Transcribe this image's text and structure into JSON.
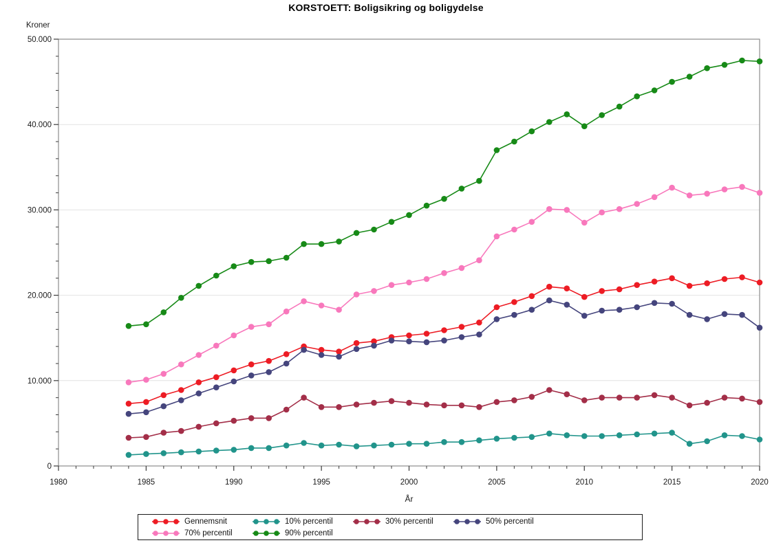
{
  "title": "KORSTOETT: Boligsikring og boligydelse",
  "y_axis": {
    "label": "Kroner",
    "tick_values": [
      0,
      10000,
      20000,
      30000,
      40000,
      50000
    ],
    "tick_labels": [
      "0",
      "10.000",
      "20.000",
      "30.000",
      "40.000",
      "50.000"
    ],
    "minor_step": 2000,
    "range": [
      0,
      50000
    ]
  },
  "x_axis": {
    "label": "År",
    "tick_values": [
      1980,
      1985,
      1990,
      1995,
      2000,
      2005,
      2010,
      2015,
      2020
    ],
    "tick_labels": [
      "1980",
      "1985",
      "1990",
      "1995",
      "2000",
      "2005",
      "2010",
      "2015",
      "2020"
    ],
    "minor_step": 1,
    "range": [
      1980,
      2020
    ]
  },
  "chart_data": {
    "type": "line",
    "title": "KORSTOETT: Boligsikring og boligydelse",
    "xlabel": "År",
    "ylabel": "Kroner",
    "xlim": [
      1980,
      2020
    ],
    "ylim": [
      0,
      50000
    ],
    "grid": "horizontal-major",
    "legend_position": "bottom",
    "marker": "circle",
    "x": [
      1984,
      1985,
      1986,
      1987,
      1988,
      1989,
      1990,
      1991,
      1992,
      1993,
      1994,
      1995,
      1996,
      1997,
      1998,
      1999,
      2000,
      2001,
      2002,
      2003,
      2004,
      2005,
      2006,
      2007,
      2008,
      2009,
      2010,
      2011,
      2012,
      2013,
      2014,
      2015,
      2016,
      2017,
      2018,
      2019,
      2020
    ],
    "series": [
      {
        "name": "Gennemsnit",
        "color": "#ED1C24",
        "values": [
          7300,
          7500,
          8300,
          8900,
          9800,
          10400,
          11200,
          11900,
          12300,
          13100,
          14000,
          13600,
          13400,
          14400,
          14600,
          15100,
          15300,
          15500,
          15900,
          16300,
          16800,
          18600,
          19200,
          19900,
          21000,
          20800,
          19800,
          20500,
          20700,
          21200,
          21600,
          22000,
          21100,
          21400,
          21900,
          22100,
          21500
        ]
      },
      {
        "name": "10% percentil",
        "color": "#21948B",
        "values": [
          1300,
          1400,
          1500,
          1600,
          1700,
          1800,
          1900,
          2100,
          2100,
          2400,
          2700,
          2400,
          2500,
          2300,
          2400,
          2500,
          2600,
          2600,
          2800,
          2800,
          3000,
          3200,
          3300,
          3400,
          3800,
          3600,
          3500,
          3500,
          3600,
          3700,
          3800,
          3900,
          2600,
          2900,
          3600,
          3500,
          3100
        ]
      },
      {
        "name": "30% percentil",
        "color": "#A32E48",
        "values": [
          3300,
          3400,
          3900,
          4100,
          4600,
          5000,
          5300,
          5600,
          5600,
          6600,
          8000,
          6900,
          6900,
          7200,
          7400,
          7600,
          7400,
          7200,
          7100,
          7100,
          6900,
          7500,
          7700,
          8100,
          8900,
          8400,
          7700,
          8000,
          8000,
          8000,
          8300,
          8000,
          7100,
          7400,
          8000,
          7900,
          7500
        ]
      },
      {
        "name": "50% percentil",
        "color": "#45457D",
        "values": [
          6100,
          6300,
          7000,
          7700,
          8500,
          9200,
          9900,
          10600,
          11000,
          12000,
          13600,
          13000,
          12800,
          13700,
          14100,
          14700,
          14600,
          14500,
          14700,
          15100,
          15400,
          17200,
          17700,
          18300,
          19400,
          18900,
          17600,
          18200,
          18300,
          18600,
          19100,
          19000,
          17700,
          17200,
          17800,
          17700,
          16200
        ]
      },
      {
        "name": "70% percentil",
        "color": "#F878BC",
        "values": [
          9800,
          10100,
          10800,
          11900,
          13000,
          14100,
          15300,
          16300,
          16600,
          18100,
          19300,
          18800,
          18300,
          20100,
          20500,
          21200,
          21500,
          21900,
          22600,
          23200,
          24100,
          26900,
          27700,
          28600,
          30100,
          30000,
          28500,
          29700,
          30100,
          30700,
          31500,
          32600,
          31700,
          31900,
          32400,
          32700,
          32000
        ]
      },
      {
        "name": "90% percentil",
        "color": "#178A17",
        "values": [
          16400,
          16600,
          18000,
          19700,
          21100,
          22300,
          23400,
          23900,
          24000,
          24400,
          26000,
          26000,
          26300,
          27300,
          27700,
          28600,
          29400,
          30500,
          31300,
          32500,
          33400,
          37000,
          38000,
          39200,
          40300,
          41200,
          39800,
          41100,
          42100,
          43300,
          44000,
          45000,
          45600,
          46600,
          47000,
          47500,
          47400
        ]
      }
    ]
  },
  "colors": {
    "grid": "#E2E2E2",
    "frame": "#8C8C8C",
    "tick": "#3A3A3A",
    "tick_label": "#1a1a1a"
  }
}
